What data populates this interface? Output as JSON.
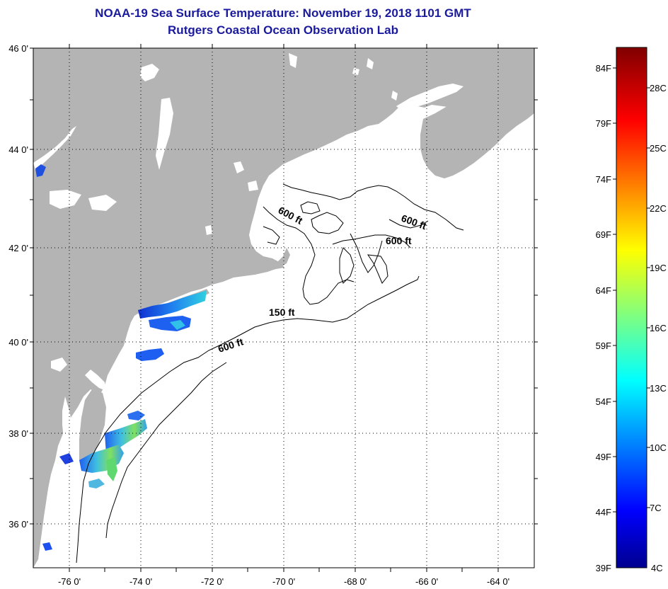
{
  "title": {
    "line1": "NOAA-19 Sea Surface Temperature:  November 19, 2018 1101 GMT",
    "line2": "Rutgers Coastal Ocean Observation Lab"
  },
  "colors": {
    "land": "#b4b4b4",
    "ocean": "#ffffff",
    "title": "#1a1a9e",
    "grid": "#000000"
  },
  "map": {
    "lat_labels": [
      "46 0'",
      "44 0'",
      "42 0'",
      "40 0'",
      "38 0'",
      "36 0'"
    ],
    "lon_labels": [
      "-76 0'",
      "-74 0'",
      "-72 0'",
      "-70 0'",
      "-68 0'",
      "-66 0'",
      "-64 0'"
    ],
    "lat_range": [
      35,
      46
    ],
    "lon_range": [
      -77,
      -63
    ],
    "contour_labels": [
      "600 ft",
      "600 ft",
      "600 ft",
      "150 ft",
      "600 ft"
    ]
  },
  "colorbar": {
    "fahrenheit": [
      "84F",
      "79F",
      "74F",
      "69F",
      "64F",
      "59F",
      "54F",
      "49F",
      "44F",
      "39F"
    ],
    "celsius": [
      "28C",
      "25C",
      "22C",
      "19C",
      "16C",
      "13C",
      "10C",
      "7C",
      "4C"
    ],
    "range_c": [
      4,
      30
    ]
  }
}
